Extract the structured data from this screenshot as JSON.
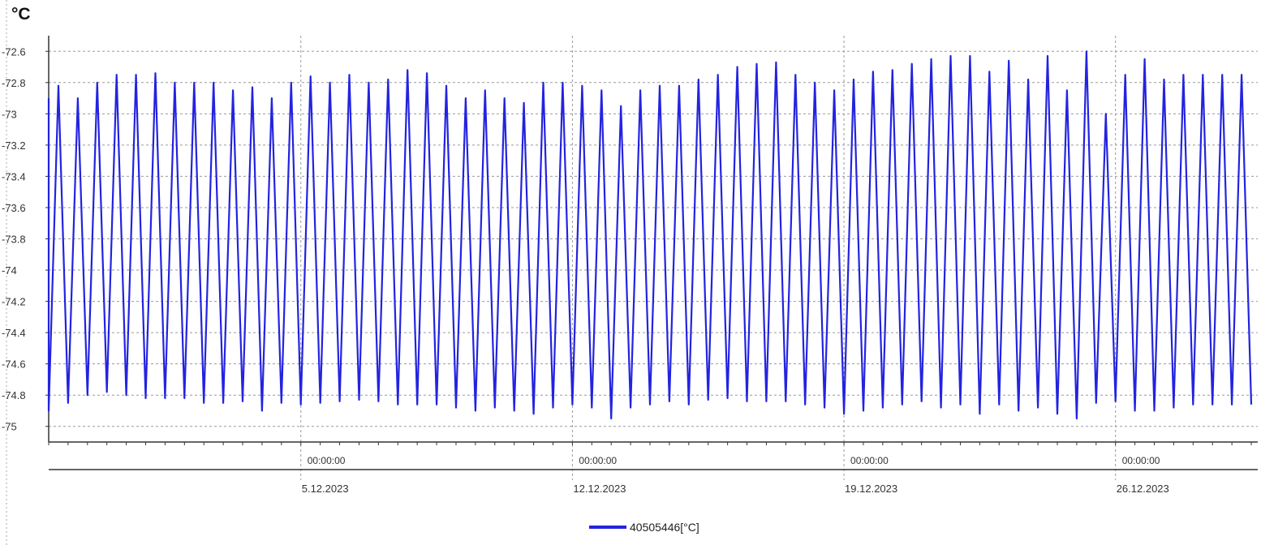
{
  "chart_data": {
    "type": "line",
    "unit_label": "°C",
    "ylim": [
      -75.1,
      -72.5
    ],
    "y_ticks": [
      "-72.6",
      "-72.8",
      "-73",
      "-73.2",
      "-73.4",
      "-73.6",
      "-73.8",
      "-74",
      "-74.2",
      "-74.4",
      "-74.6",
      "-74.8",
      "-75"
    ],
    "y_tick_values": [
      -72.6,
      -72.8,
      -73.0,
      -73.2,
      -73.4,
      -73.6,
      -73.8,
      -74.0,
      -74.2,
      -74.4,
      -74.6,
      -74.8,
      -75.0
    ],
    "x_range": [
      "2023-11-28T12:00",
      "2023-12-29T16:00"
    ],
    "x_ticks": [
      {
        "time": "00:00:00",
        "date": "5.12.2023",
        "x": "2023-12-05T00:00"
      },
      {
        "time": "00:00:00",
        "date": "12.12.2023",
        "x": "2023-12-12T00:00"
      },
      {
        "time": "00:00:00",
        "date": "19.12.2023",
        "x": "2023-12-19T00:00"
      },
      {
        "time": "00:00:00",
        "date": "26.12.2023",
        "x": "2023-12-26T00:00"
      }
    ],
    "grid": true,
    "legend": "bottom-center",
    "series": [
      {
        "name": "40505446[°C]",
        "color": "#2323e0",
        "x": [
          "2023-11-28T12:00",
          "2023-11-29T00:00",
          "2023-11-29T12:00",
          "2023-11-30T00:00",
          "2023-11-30T12:00",
          "2023-12-01T00:00",
          "2023-12-01T12:00",
          "2023-12-02T00:00",
          "2023-12-02T12:00",
          "2023-12-03T00:00",
          "2023-12-03T12:00",
          "2023-12-04T00:00",
          "2023-12-04T12:00",
          "2023-12-05T00:00",
          "2023-12-05T12:00",
          "2023-12-06T00:00",
          "2023-12-06T12:00",
          "2023-12-07T00:00",
          "2023-12-07T12:00",
          "2023-12-08T00:00",
          "2023-12-08T12:00",
          "2023-12-09T00:00",
          "2023-12-09T12:00",
          "2023-12-10T00:00",
          "2023-12-10T12:00",
          "2023-12-11T00:00",
          "2023-12-11T12:00",
          "2023-12-12T00:00",
          "2023-12-12T12:00",
          "2023-12-13T00:00",
          "2023-12-13T12:00",
          "2023-12-14T00:00",
          "2023-12-14T12:00",
          "2023-12-15T00:00",
          "2023-12-15T12:00",
          "2023-12-16T00:00",
          "2023-12-16T12:00",
          "2023-12-17T00:00",
          "2023-12-17T12:00",
          "2023-12-18T00:00",
          "2023-12-18T12:00",
          "2023-12-19T00:00",
          "2023-12-19T12:00",
          "2023-12-20T00:00",
          "2023-12-20T12:00",
          "2023-12-21T00:00",
          "2023-12-21T12:00",
          "2023-12-22T00:00",
          "2023-12-22T12:00",
          "2023-12-23T00:00",
          "2023-12-23T12:00",
          "2023-12-24T00:00",
          "2023-12-24T12:00",
          "2023-12-25T00:00",
          "2023-12-25T12:00",
          "2023-12-26T00:00",
          "2023-12-26T12:00",
          "2023-12-27T00:00",
          "2023-12-27T12:00",
          "2023-12-28T00:00",
          "2023-12-28T12:00",
          "2023-12-29T00:00",
          "2023-12-29T12:00"
        ],
        "peaks": [
          -72.82,
          -72.9,
          -72.8,
          -72.75,
          -72.75,
          -72.74,
          -72.8,
          -72.8,
          -72.8,
          -72.85,
          -72.83,
          -72.9,
          -72.8,
          -72.76,
          -72.8,
          -72.75,
          -72.8,
          -72.78,
          -72.72,
          -72.74,
          -72.82,
          -72.9,
          -72.85,
          -72.9,
          -72.93,
          -72.8,
          -72.8,
          -72.82,
          -72.85,
          -72.95,
          -72.85,
          -72.82,
          -72.82,
          -72.78,
          -72.75,
          -72.7,
          -72.68,
          -72.67,
          -72.75,
          -72.8,
          -72.85,
          -72.78,
          -72.73,
          -72.72,
          -72.68,
          -72.65,
          -72.63,
          -72.63,
          -72.73,
          -72.66,
          -72.78,
          -72.63,
          -72.85,
          -72.6,
          -73.0,
          -72.75,
          -72.65,
          -72.78,
          -72.75,
          -72.75,
          -72.75,
          -72.75,
          -72.75
        ],
        "troughs": [
          -74.9,
          -74.85,
          -74.8,
          -74.78,
          -74.8,
          -74.82,
          -74.82,
          -74.82,
          -74.85,
          -74.85,
          -74.84,
          -74.9,
          -74.85,
          -74.86,
          -74.85,
          -74.84,
          -74.83,
          -74.84,
          -74.86,
          -74.86,
          -74.86,
          -74.88,
          -74.9,
          -74.88,
          -74.9,
          -74.92,
          -74.88,
          -74.86,
          -74.88,
          -74.95,
          -74.88,
          -74.86,
          -74.84,
          -74.86,
          -74.83,
          -74.82,
          -74.84,
          -74.84,
          -74.84,
          -74.86,
          -74.88,
          -74.92,
          -74.9,
          -74.88,
          -74.86,
          -74.84,
          -74.88,
          -74.86,
          -74.92,
          -74.86,
          -74.9,
          -74.88,
          -74.92,
          -74.95,
          -74.85,
          -74.84,
          -74.9,
          -74.9,
          -74.88,
          -74.86,
          -74.86,
          -74.86,
          -74.86
        ]
      }
    ]
  }
}
